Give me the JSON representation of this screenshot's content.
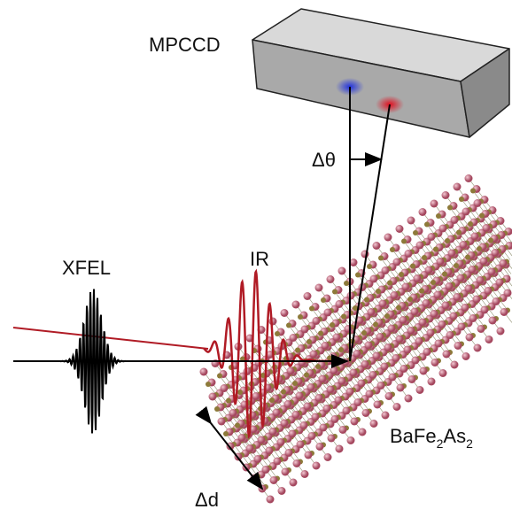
{
  "labels": {
    "detector": "MPCCD",
    "angle": "Δθ",
    "xray": "XFEL",
    "laser": "IR",
    "sample": [
      "BaFe",
      "2",
      "As",
      "2"
    ],
    "distance": "Δd"
  }
}
